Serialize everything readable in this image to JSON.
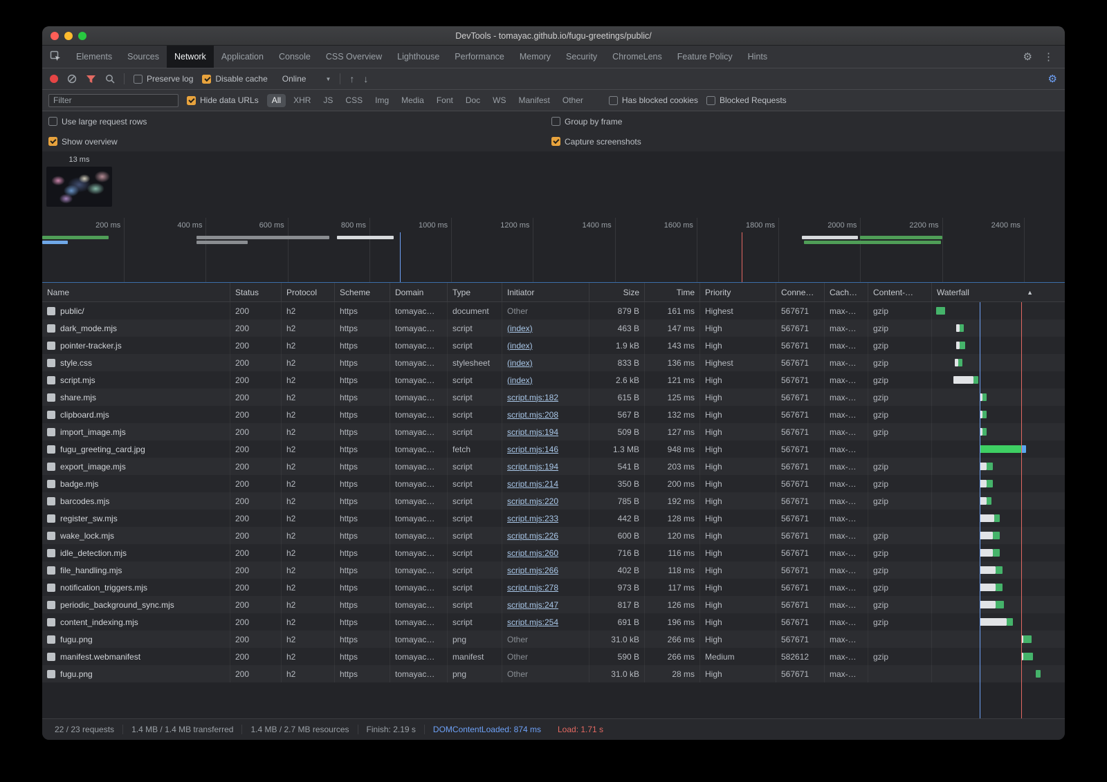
{
  "colors": {
    "accent_orange": "#e8a33d",
    "link_blue": "#a9c7e8",
    "dcl_blue": "#6ea1f7",
    "load_red": "#e46962",
    "wf_green": "#45b36a",
    "wf_green_bright": "#3ecf63",
    "wf_blue": "#5aa7f0",
    "wf_wait": "#e1e3e6",
    "record_red": "#e64545",
    "filter_red": "#e36a62",
    "settings_blue": "#6ea1f7"
  },
  "window": {
    "title": "DevTools - tomayac.github.io/fugu-greetings/public/"
  },
  "tabs": [
    {
      "label": "Elements",
      "active": false
    },
    {
      "label": "Sources",
      "active": false
    },
    {
      "label": "Network",
      "active": true
    },
    {
      "label": "Application",
      "active": false
    },
    {
      "label": "Console",
      "active": false
    },
    {
      "label": "CSS Overview",
      "active": false
    },
    {
      "label": "Lighthouse",
      "active": false
    },
    {
      "label": "Performance",
      "active": false
    },
    {
      "label": "Memory",
      "active": false
    },
    {
      "label": "Security",
      "active": false
    },
    {
      "label": "ChromeLens",
      "active": false
    },
    {
      "label": "Feature Policy",
      "active": false
    },
    {
      "label": "Hints",
      "active": false
    }
  ],
  "toolbar": {
    "preserve_log": {
      "label": "Preserve log",
      "checked": false
    },
    "disable_cache": {
      "label": "Disable cache",
      "checked": true
    },
    "throttling": "Online"
  },
  "filter_bar": {
    "placeholder": "Filter",
    "hide_data_urls": {
      "label": "Hide data URLs",
      "checked": true
    },
    "types": [
      "All",
      "XHR",
      "JS",
      "CSS",
      "Img",
      "Media",
      "Font",
      "Doc",
      "WS",
      "Manifest",
      "Other"
    ],
    "active_type": "All",
    "has_blocked_cookies": {
      "label": "Has blocked cookies",
      "checked": false
    },
    "blocked_requests": {
      "label": "Blocked Requests",
      "checked": false
    }
  },
  "options": {
    "use_large_request_rows": {
      "label": "Use large request rows",
      "checked": false
    },
    "group_by_frame": {
      "label": "Group by frame",
      "checked": false
    },
    "show_overview": {
      "label": "Show overview",
      "checked": true
    },
    "capture_screenshots": {
      "label": "Capture screenshots",
      "checked": true
    }
  },
  "filmstrip": {
    "time_label": "13 ms"
  },
  "overview": {
    "time_labels": [
      "200 ms",
      "400 ms",
      "600 ms",
      "800 ms",
      "1000 ms",
      "1200 ms",
      "1400 ms",
      "1600 ms",
      "1800 ms",
      "2000 ms",
      "2200 ms",
      "2400 ms"
    ],
    "dcl_pct": 35,
    "load_pct": 68.4,
    "lanes": [
      [
        {
          "l": 0,
          "w": 6.5,
          "c": "green"
        },
        {
          "l": 15.1,
          "w": 13,
          "c": "gray"
        },
        {
          "l": 28.8,
          "w": 5.6,
          "c": "white"
        },
        {
          "l": 74.3,
          "w": 5.5,
          "c": "white"
        },
        {
          "l": 80,
          "w": 8,
          "c": "green"
        }
      ],
      [
        {
          "l": 0,
          "w": 2.5,
          "c": "blue"
        },
        {
          "l": 15.1,
          "w": 5,
          "c": "gray"
        },
        {
          "l": 74.5,
          "w": 13.4,
          "c": "green"
        }
      ]
    ]
  },
  "table": {
    "columns": [
      "Name",
      "Status",
      "Protocol",
      "Scheme",
      "Domain",
      "Type",
      "Initiator",
      "Size",
      "Time",
      "Priority",
      "Conne…",
      "Cach…",
      "Content-…",
      "Waterfall"
    ],
    "waterfall": {
      "dcl_pct": 36,
      "load_pct": 67
    },
    "rows": [
      {
        "name": "public/",
        "status": "200",
        "protocol": "h2",
        "scheme": "https",
        "domain": "tomayac…",
        "type": "document",
        "initiator": "Other",
        "initiator_link": false,
        "size": "879 B",
        "time": "161 ms",
        "priority": "Highest",
        "connection": "567671",
        "cache": "max-…",
        "content": "gzip",
        "wf": [
          {
            "k": "g",
            "l": 3,
            "w": 7
          }
        ]
      },
      {
        "name": "dark_mode.mjs",
        "status": "200",
        "protocol": "h2",
        "scheme": "https",
        "domain": "tomayac…",
        "type": "script",
        "initiator": "(index)",
        "initiator_link": true,
        "size": "463 B",
        "time": "147 ms",
        "priority": "High",
        "connection": "567671",
        "cache": "max-…",
        "content": "gzip",
        "wf": [
          {
            "k": "w",
            "l": 18,
            "w": 3
          },
          {
            "k": "g",
            "l": 21,
            "w": 3
          }
        ]
      },
      {
        "name": "pointer-tracker.js",
        "status": "200",
        "protocol": "h2",
        "scheme": "https",
        "domain": "tomayac…",
        "type": "script",
        "initiator": "(index)",
        "initiator_link": true,
        "size": "1.9 kB",
        "time": "143 ms",
        "priority": "High",
        "connection": "567671",
        "cache": "max-…",
        "content": "gzip",
        "wf": [
          {
            "k": "w",
            "l": 18,
            "w": 3
          },
          {
            "k": "g",
            "l": 21,
            "w": 4
          }
        ]
      },
      {
        "name": "style.css",
        "status": "200",
        "protocol": "h2",
        "scheme": "https",
        "domain": "tomayac…",
        "type": "stylesheet",
        "initiator": "(index)",
        "initiator_link": true,
        "size": "833 B",
        "time": "136 ms",
        "priority": "Highest",
        "connection": "567671",
        "cache": "max-…",
        "content": "gzip",
        "wf": [
          {
            "k": "w",
            "l": 17,
            "w": 3
          },
          {
            "k": "g",
            "l": 20,
            "w": 3
          }
        ]
      },
      {
        "name": "script.mjs",
        "status": "200",
        "protocol": "h2",
        "scheme": "https",
        "domain": "tomayac…",
        "type": "script",
        "initiator": "(index)",
        "initiator_link": true,
        "size": "2.6 kB",
        "time": "121 ms",
        "priority": "High",
        "connection": "567671",
        "cache": "max-…",
        "content": "gzip",
        "wf": [
          {
            "k": "w",
            "l": 16,
            "w": 15
          },
          {
            "k": "g",
            "l": 31,
            "w": 4
          }
        ]
      },
      {
        "name": "share.mjs",
        "status": "200",
        "protocol": "h2",
        "scheme": "https",
        "domain": "tomayac…",
        "type": "script",
        "initiator": "script.mjs:182",
        "initiator_link": true,
        "size": "615 B",
        "time": "125 ms",
        "priority": "High",
        "connection": "567671",
        "cache": "max-…",
        "content": "gzip",
        "wf": [
          {
            "k": "w",
            "l": 36,
            "w": 2
          },
          {
            "k": "g",
            "l": 38,
            "w": 3
          }
        ]
      },
      {
        "name": "clipboard.mjs",
        "status": "200",
        "protocol": "h2",
        "scheme": "https",
        "domain": "tomayac…",
        "type": "script",
        "initiator": "script.mjs:208",
        "initiator_link": true,
        "size": "567 B",
        "time": "132 ms",
        "priority": "High",
        "connection": "567671",
        "cache": "max-…",
        "content": "gzip",
        "wf": [
          {
            "k": "w",
            "l": 36,
            "w": 2
          },
          {
            "k": "g",
            "l": 38,
            "w": 3
          }
        ]
      },
      {
        "name": "import_image.mjs",
        "status": "200",
        "protocol": "h2",
        "scheme": "https",
        "domain": "tomayac…",
        "type": "script",
        "initiator": "script.mjs:194",
        "initiator_link": true,
        "size": "509 B",
        "time": "127 ms",
        "priority": "High",
        "connection": "567671",
        "cache": "max-…",
        "content": "gzip",
        "wf": [
          {
            "k": "w",
            "l": 36,
            "w": 2
          },
          {
            "k": "g",
            "l": 38,
            "w": 3
          }
        ]
      },
      {
        "name": "fugu_greeting_card.jpg",
        "status": "200",
        "protocol": "h2",
        "scheme": "https",
        "domain": "tomayac…",
        "type": "fetch",
        "initiator": "script.mjs:146",
        "initiator_link": true,
        "size": "1.3 MB",
        "time": "948 ms",
        "priority": "High",
        "connection": "567671",
        "cache": "max-…",
        "content": "",
        "wf": [
          {
            "k": "G",
            "l": 36,
            "w": 31
          },
          {
            "k": "b",
            "l": 67,
            "w": 4
          }
        ]
      },
      {
        "name": "export_image.mjs",
        "status": "200",
        "protocol": "h2",
        "scheme": "https",
        "domain": "tomayac…",
        "type": "script",
        "initiator": "script.mjs:194",
        "initiator_link": true,
        "size": "541 B",
        "time": "203 ms",
        "priority": "High",
        "connection": "567671",
        "cache": "max-…",
        "content": "gzip",
        "wf": [
          {
            "k": "w",
            "l": 36,
            "w": 5
          },
          {
            "k": "g",
            "l": 41,
            "w": 5
          }
        ]
      },
      {
        "name": "badge.mjs",
        "status": "200",
        "protocol": "h2",
        "scheme": "https",
        "domain": "tomayac…",
        "type": "script",
        "initiator": "script.mjs:214",
        "initiator_link": true,
        "size": "350 B",
        "time": "200 ms",
        "priority": "High",
        "connection": "567671",
        "cache": "max-…",
        "content": "gzip",
        "wf": [
          {
            "k": "w",
            "l": 36,
            "w": 5
          },
          {
            "k": "g",
            "l": 41,
            "w": 5
          }
        ]
      },
      {
        "name": "barcodes.mjs",
        "status": "200",
        "protocol": "h2",
        "scheme": "https",
        "domain": "tomayac…",
        "type": "script",
        "initiator": "script.mjs:220",
        "initiator_link": true,
        "size": "785 B",
        "time": "192 ms",
        "priority": "High",
        "connection": "567671",
        "cache": "max-…",
        "content": "gzip",
        "wf": [
          {
            "k": "w",
            "l": 36,
            "w": 5
          },
          {
            "k": "g",
            "l": 41,
            "w": 4
          }
        ]
      },
      {
        "name": "register_sw.mjs",
        "status": "200",
        "protocol": "h2",
        "scheme": "https",
        "domain": "tomayac…",
        "type": "script",
        "initiator": "script.mjs:233",
        "initiator_link": true,
        "size": "442 B",
        "time": "128 ms",
        "priority": "High",
        "connection": "567671",
        "cache": "max-…",
        "content": "",
        "wf": [
          {
            "k": "w",
            "l": 36,
            "w": 11
          },
          {
            "k": "g",
            "l": 47,
            "w": 4
          }
        ]
      },
      {
        "name": "wake_lock.mjs",
        "status": "200",
        "protocol": "h2",
        "scheme": "https",
        "domain": "tomayac…",
        "type": "script",
        "initiator": "script.mjs:226",
        "initiator_link": true,
        "size": "600 B",
        "time": "120 ms",
        "priority": "High",
        "connection": "567671",
        "cache": "max-…",
        "content": "gzip",
        "wf": [
          {
            "k": "w",
            "l": 36,
            "w": 10
          },
          {
            "k": "g",
            "l": 46,
            "w": 5
          }
        ]
      },
      {
        "name": "idle_detection.mjs",
        "status": "200",
        "protocol": "h2",
        "scheme": "https",
        "domain": "tomayac…",
        "type": "script",
        "initiator": "script.mjs:260",
        "initiator_link": true,
        "size": "716 B",
        "time": "116 ms",
        "priority": "High",
        "connection": "567671",
        "cache": "max-…",
        "content": "gzip",
        "wf": [
          {
            "k": "w",
            "l": 36,
            "w": 10
          },
          {
            "k": "g",
            "l": 46,
            "w": 5
          }
        ]
      },
      {
        "name": "file_handling.mjs",
        "status": "200",
        "protocol": "h2",
        "scheme": "https",
        "domain": "tomayac…",
        "type": "script",
        "initiator": "script.mjs:266",
        "initiator_link": true,
        "size": "402 B",
        "time": "118 ms",
        "priority": "High",
        "connection": "567671",
        "cache": "max-…",
        "content": "gzip",
        "wf": [
          {
            "k": "w",
            "l": 36,
            "w": 12
          },
          {
            "k": "g",
            "l": 48,
            "w": 5
          }
        ]
      },
      {
        "name": "notification_triggers.mjs",
        "status": "200",
        "protocol": "h2",
        "scheme": "https",
        "domain": "tomayac…",
        "type": "script",
        "initiator": "script.mjs:278",
        "initiator_link": true,
        "size": "973 B",
        "time": "117 ms",
        "priority": "High",
        "connection": "567671",
        "cache": "max-…",
        "content": "gzip",
        "wf": [
          {
            "k": "w",
            "l": 36,
            "w": 12
          },
          {
            "k": "g",
            "l": 48,
            "w": 5
          }
        ]
      },
      {
        "name": "periodic_background_sync.mjs",
        "status": "200",
        "protocol": "h2",
        "scheme": "https",
        "domain": "tomayac…",
        "type": "script",
        "initiator": "script.mjs:247",
        "initiator_link": true,
        "size": "817 B",
        "time": "126 ms",
        "priority": "High",
        "connection": "567671",
        "cache": "max-…",
        "content": "gzip",
        "wf": [
          {
            "k": "w",
            "l": 36,
            "w": 12
          },
          {
            "k": "g",
            "l": 48,
            "w": 6
          }
        ]
      },
      {
        "name": "content_indexing.mjs",
        "status": "200",
        "protocol": "h2",
        "scheme": "https",
        "domain": "tomayac…",
        "type": "script",
        "initiator": "script.mjs:254",
        "initiator_link": true,
        "size": "691 B",
        "time": "196 ms",
        "priority": "High",
        "connection": "567671",
        "cache": "max-…",
        "content": "gzip",
        "wf": [
          {
            "k": "w",
            "l": 36,
            "w": 20
          },
          {
            "k": "g",
            "l": 56,
            "w": 5
          }
        ]
      },
      {
        "name": "fugu.png",
        "status": "200",
        "protocol": "h2",
        "scheme": "https",
        "domain": "tomayac…",
        "type": "png",
        "initiator": "Other",
        "initiator_link": false,
        "size": "31.0 kB",
        "time": "266 ms",
        "priority": "High",
        "connection": "567671",
        "cache": "max-…",
        "content": "",
        "wf": [
          {
            "k": "w",
            "l": 67,
            "w": 2
          },
          {
            "k": "g",
            "l": 69,
            "w": 6
          }
        ]
      },
      {
        "name": "manifest.webmanifest",
        "status": "200",
        "protocol": "h2",
        "scheme": "https",
        "domain": "tomayac…",
        "type": "manifest",
        "initiator": "Other",
        "initiator_link": false,
        "size": "590 B",
        "time": "266 ms",
        "priority": "Medium",
        "connection": "582612",
        "cache": "max-…",
        "content": "gzip",
        "wf": [
          {
            "k": "w",
            "l": 67,
            "w": 2
          },
          {
            "k": "g",
            "l": 69,
            "w": 7
          }
        ]
      },
      {
        "name": "fugu.png",
        "status": "200",
        "protocol": "h2",
        "scheme": "https",
        "domain": "tomayac…",
        "type": "png",
        "initiator": "Other",
        "initiator_link": false,
        "size": "31.0 kB",
        "time": "28 ms",
        "priority": "High",
        "connection": "567671",
        "cache": "max-…",
        "content": "",
        "wf": [
          {
            "k": "g",
            "l": 78,
            "w": 4
          }
        ]
      }
    ]
  },
  "status_bar": {
    "requests": "22 / 23 requests",
    "transferred": "1.4 MB / 1.4 MB transferred",
    "resources": "1.4 MB / 2.7 MB resources",
    "finish": "Finish: 2.19 s",
    "dom_content_loaded": "DOMContentLoaded: 874 ms",
    "load": "Load: 1.71 s"
  }
}
